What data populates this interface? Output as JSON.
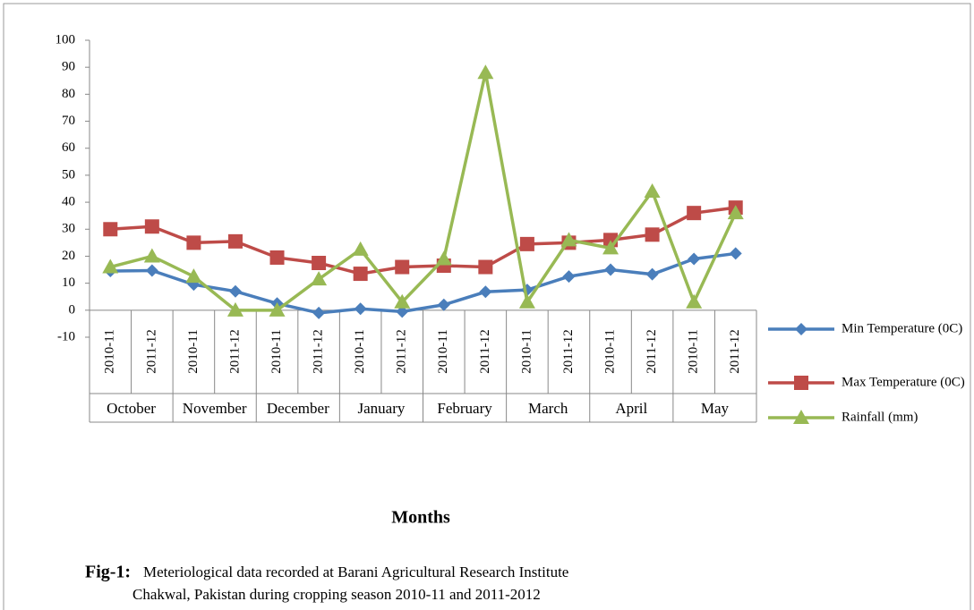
{
  "chart_data": {
    "type": "line",
    "x_label": "Months",
    "caption": {
      "label": "Fig-1:",
      "lines": [
        "Meteriological data recorded at Barani Agricultural Research Institute",
        "Chakwal, Pakistan during cropping season 2010-11 and 2011-2012"
      ]
    },
    "categories": [
      "2010-11",
      "2011-12",
      "2010-11",
      "2011-12",
      "2010-11",
      "2011-12",
      "2010-11",
      "2011-12",
      "2010-11",
      "2011-12",
      "2010-11",
      "2011-12",
      "2010-11",
      "2011-12",
      "2010-11",
      "2011-12"
    ],
    "groups": [
      "October",
      "November",
      "December",
      "January",
      "February",
      "March",
      "April",
      "May"
    ],
    "series": [
      {
        "name": "Min Temperature (0C)",
        "color": "#4a7ebb",
        "marker": "diamond",
        "values": [
          14.5,
          14.7,
          9.5,
          7,
          2.5,
          -1,
          0.5,
          -0.5,
          2,
          6.8,
          7.5,
          12.5,
          15,
          13.3,
          19,
          21
        ]
      },
      {
        "name": "Max Temperature (0C)",
        "color": "#be4b48",
        "marker": "square",
        "values": [
          30,
          31,
          25,
          25.5,
          19.5,
          17.5,
          13.5,
          16,
          16.5,
          16,
          24.5,
          25,
          26,
          28,
          36,
          38
        ]
      },
      {
        "name": "Rainfall  (mm)",
        "color": "#98b954",
        "marker": "triangle",
        "values": [
          16,
          20,
          12.5,
          0,
          0,
          11.5,
          22.5,
          3,
          19,
          88,
          3,
          26,
          23,
          44,
          3,
          36
        ]
      }
    ],
    "ylim": [
      -10,
      100
    ],
    "yticks": [
      -10,
      0,
      10,
      20,
      30,
      40,
      50,
      60,
      70,
      80,
      90,
      100
    ]
  }
}
